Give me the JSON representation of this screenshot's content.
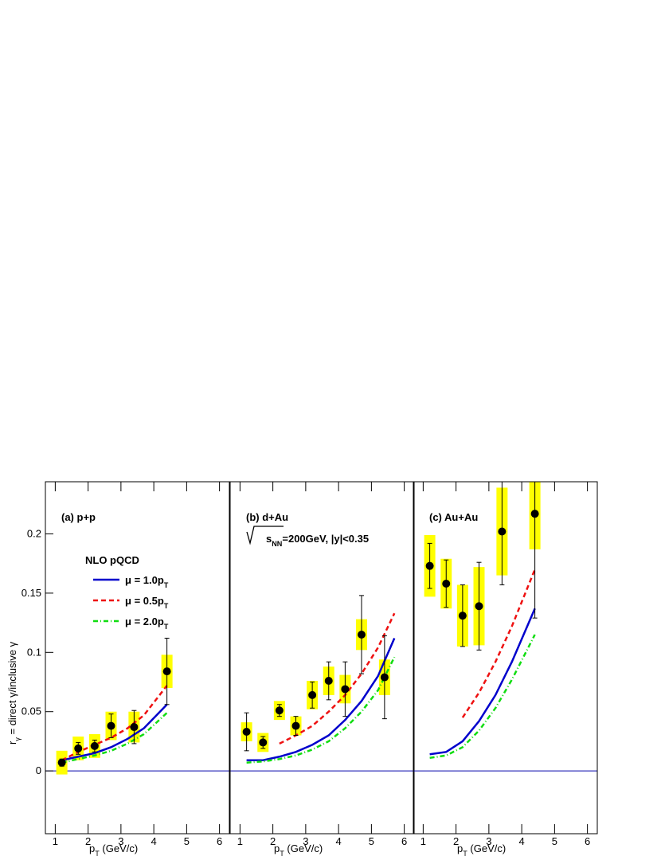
{
  "chart_data": [
    {
      "type": "scatter",
      "title": "(a) p+p",
      "y_label": {
        "main": "r",
        "sub": "γ",
        "rest": " = direct γ/inclusive γ"
      },
      "x_label": {
        "main": "p",
        "sub": "T",
        "rest": " (GeV/c)"
      },
      "legend_title": "NLO pQCD",
      "xlim": [
        0.7,
        6.3
      ],
      "xticks": [
        1,
        2,
        3,
        4,
        5,
        6
      ],
      "ylim": [
        -0.053,
        0.244
      ],
      "yticks": [
        0,
        0.05,
        0.1,
        0.15,
        0.2
      ],
      "points": {
        "color": "#000000",
        "sys_color": "#ffff00",
        "x": [
          1.2,
          1.7,
          2.2,
          2.7,
          3.4,
          4.4
        ],
        "values": [
          0.007,
          0.019,
          0.021,
          0.038,
          0.037,
          0.084
        ],
        "errors": [
          0.003,
          0.005,
          0.005,
          0.01,
          0.014,
          0.028
        ],
        "sys_errors": [
          0.01,
          0.01,
          0.01,
          0.012,
          0.013,
          0.014
        ]
      },
      "curves": [
        {
          "name": "μ = 1.0p",
          "name_sub": "T",
          "color": "#0000cc",
          "dash": "none",
          "x": [
            1.2,
            1.7,
            2.2,
            2.7,
            3.2,
            3.7,
            4.4
          ],
          "values": [
            0.009,
            0.012,
            0.015,
            0.02,
            0.027,
            0.036,
            0.056
          ]
        },
        {
          "name": "μ = 0.5p",
          "name_sub": "T",
          "color": "#ee1111",
          "dash": "6,4",
          "x": [
            1.2,
            1.7,
            2.2,
            2.7,
            3.2,
            3.7,
            4.4
          ],
          "values": [
            0.009,
            0.016,
            0.022,
            0.028,
            0.036,
            0.047,
            0.072
          ]
        },
        {
          "name": "μ = 2.0p",
          "name_sub": "T",
          "color": "#11dd11",
          "dash": "6,3,1,3",
          "x": [
            1.2,
            1.7,
            2.2,
            2.7,
            3.2,
            3.7,
            4.4
          ],
          "values": [
            0.007,
            0.01,
            0.013,
            0.017,
            0.023,
            0.031,
            0.049
          ]
        }
      ]
    },
    {
      "type": "scatter",
      "title": "(b) d+Au",
      "annotation": {
        "main": "s",
        "sub": "NN",
        "rest": "=200GeV, |y|<0.35"
      },
      "x_label": {
        "main": "p",
        "sub": "T",
        "rest": " (GeV/c)"
      },
      "xlim": [
        0.7,
        6.3
      ],
      "xticks": [
        1,
        2,
        3,
        4,
        5,
        6
      ],
      "ylim": [
        -0.053,
        0.244
      ],
      "points": {
        "color": "#000000",
        "sys_color": "#ffff00",
        "x": [
          1.2,
          1.7,
          2.2,
          2.7,
          3.2,
          3.7,
          4.2,
          4.7,
          5.4
        ],
        "values": [
          0.033,
          0.024,
          0.051,
          0.038,
          0.064,
          0.076,
          0.069,
          0.115,
          0.079
        ],
        "errors": [
          0.016,
          0.005,
          0.005,
          0.008,
          0.011,
          0.016,
          0.023,
          0.033,
          0.035
        ],
        "sys_errors": [
          0.008,
          0.008,
          0.008,
          0.008,
          0.012,
          0.012,
          0.012,
          0.013,
          0.015
        ]
      },
      "curves": [
        {
          "color": "#0000cc",
          "dash": "none",
          "x": [
            1.2,
            1.7,
            2.2,
            2.7,
            3.2,
            3.7,
            4.2,
            4.7,
            5.2,
            5.7
          ],
          "values": [
            0.009,
            0.009,
            0.012,
            0.016,
            0.022,
            0.03,
            0.043,
            0.059,
            0.08,
            0.112
          ]
        },
        {
          "color": "#ee1111",
          "dash": "6,4",
          "x": [
            1.2,
            1.7,
            2.2,
            2.7,
            3.2,
            3.7,
            4.2,
            4.7,
            5.2,
            5.7
          ],
          "values": [
            null,
            null,
            0.023,
            0.03,
            0.038,
            0.05,
            0.064,
            0.082,
            0.104,
            0.133
          ]
        },
        {
          "color": "#11dd11",
          "dash": "6,3,1,3",
          "x": [
            1.2,
            1.7,
            2.2,
            2.7,
            3.2,
            3.7,
            4.2,
            4.7,
            5.2,
            5.7
          ],
          "values": [
            0.007,
            0.008,
            0.01,
            0.013,
            0.018,
            0.025,
            0.036,
            0.05,
            0.068,
            0.096
          ]
        }
      ]
    },
    {
      "type": "scatter",
      "title": "(c) Au+Au",
      "x_label": {
        "main": "p",
        "sub": "T",
        "rest": " (GeV/c)"
      },
      "xlim": [
        0.7,
        6.3
      ],
      "xticks": [
        1,
        2,
        3,
        4,
        5,
        6
      ],
      "ylim": [
        -0.053,
        0.244
      ],
      "points": {
        "color": "#000000",
        "sys_color": "#ffff00",
        "x": [
          1.2,
          1.7,
          2.2,
          2.7,
          3.4,
          4.4
        ],
        "values": [
          0.173,
          0.158,
          0.131,
          0.139,
          0.202,
          0.217
        ],
        "errors": [
          0.019,
          0.02,
          0.026,
          0.037,
          0.045,
          0.088
        ],
        "sys_errors": [
          0.026,
          0.021,
          0.026,
          0.033,
          0.037,
          0.03
        ]
      },
      "curves": [
        {
          "color": "#0000cc",
          "dash": "none",
          "x": [
            1.2,
            1.7,
            2.2,
            2.7,
            3.2,
            3.7,
            4.4
          ],
          "values": [
            0.014,
            0.016,
            0.025,
            0.042,
            0.064,
            0.092,
            0.137
          ]
        },
        {
          "color": "#ee1111",
          "dash": "6,4",
          "x": [
            1.2,
            1.7,
            2.2,
            2.7,
            3.2,
            3.7,
            4.4
          ],
          "values": [
            null,
            null,
            0.045,
            0.066,
            0.092,
            0.122,
            0.17
          ]
        },
        {
          "color": "#11dd11",
          "dash": "6,3,1,3",
          "x": [
            1.2,
            1.7,
            2.2,
            2.7,
            3.2,
            3.7,
            4.4
          ],
          "values": [
            0.011,
            0.013,
            0.02,
            0.034,
            0.053,
            0.077,
            0.115
          ]
        }
      ]
    }
  ]
}
